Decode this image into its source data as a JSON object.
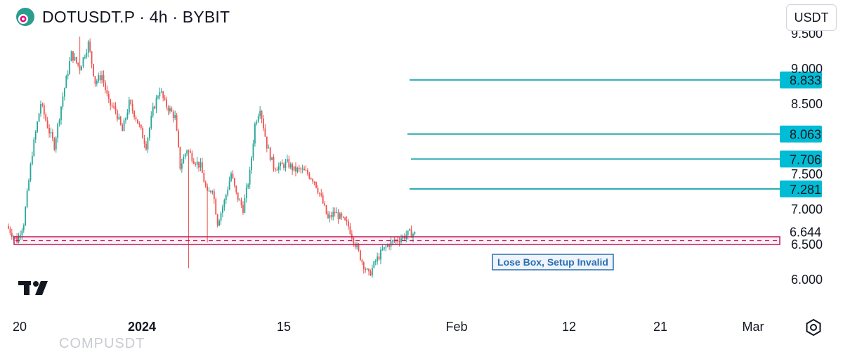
{
  "header": {
    "symbol_title": "DOTUSDT.P · 4h · BYBIT",
    "currency_button": "USDT"
  },
  "watermark_text": "COMPUSDT",
  "icons": {
    "symbol_logo": "polkadot-logo-icon",
    "tradingview_logo": "tradingview-logo-icon",
    "settings": "gear-icon"
  },
  "colors": {
    "up": "#26a69a",
    "down": "#ef5350",
    "level_line": "#22a7b2",
    "level_badge": "#00bcd4",
    "box": "#c2185b",
    "annotation": "#2a6fb6"
  },
  "chart_data": {
    "type": "candlestick",
    "price_axis_ticks": [
      "9.500",
      "9.000",
      "8.500",
      "7.500",
      "7.000",
      "6.500",
      "6.000"
    ],
    "time_axis_ticks": [
      "20",
      "2024",
      "15",
      "Feb",
      "12",
      "21",
      "Mar"
    ],
    "ylim": [
      5.6,
      9.6
    ],
    "levels": [
      {
        "price": 8.833,
        "label": "8.833"
      },
      {
        "price": 8.063,
        "label": "8.063"
      },
      {
        "price": 7.706,
        "label": "7.706"
      },
      {
        "price": 7.281,
        "label": "7.281"
      }
    ],
    "current_price": {
      "price": 6.644,
      "label": "6.644"
    },
    "box": {
      "top": 6.6,
      "bottom": 6.49,
      "mid": 6.545
    },
    "annotation": "Lose Box, Setup Invalid",
    "path_points": [
      [
        0,
        6.75
      ],
      [
        6,
        6.55
      ],
      [
        10,
        6.8
      ],
      [
        15,
        7.8
      ],
      [
        20,
        8.5
      ],
      [
        25,
        8.1
      ],
      [
        28,
        7.9
      ],
      [
        33,
        8.6
      ],
      [
        38,
        9.2
      ],
      [
        43,
        9.0
      ],
      [
        48,
        9.35
      ],
      [
        52,
        8.8
      ],
      [
        56,
        8.9
      ],
      [
        60,
        8.5
      ],
      [
        64,
        8.4
      ],
      [
        68,
        8.1
      ],
      [
        72,
        8.5
      ],
      [
        76,
        8.3
      ],
      [
        82,
        7.9
      ],
      [
        86,
        8.4
      ],
      [
        90,
        8.7
      ],
      [
        93,
        8.5
      ],
      [
        96,
        8.4
      ],
      [
        99,
        8.3
      ],
      [
        102,
        7.6
      ],
      [
        106,
        7.85
      ],
      [
        110,
        7.7
      ],
      [
        114,
        7.6
      ],
      [
        118,
        7.2
      ],
      [
        121,
        7.3
      ],
      [
        124,
        6.8
      ],
      [
        128,
        7.1
      ],
      [
        132,
        7.5
      ],
      [
        135,
        7.2
      ],
      [
        139,
        7.0
      ],
      [
        143,
        7.5
      ],
      [
        146,
        8.2
      ],
      [
        149,
        8.45
      ],
      [
        153,
        7.9
      ],
      [
        157,
        7.6
      ],
      [
        161,
        7.6
      ],
      [
        165,
        7.65
      ],
      [
        169,
        7.55
      ],
      [
        173,
        7.55
      ],
      [
        177,
        7.5
      ],
      [
        181,
        7.4
      ],
      [
        185,
        7.15
      ],
      [
        189,
        6.85
      ],
      [
        193,
        6.95
      ],
      [
        197,
        6.85
      ],
      [
        201,
        6.75
      ],
      [
        205,
        6.5
      ],
      [
        209,
        6.25
      ],
      [
        213,
        6.05
      ],
      [
        217,
        6.25
      ],
      [
        221,
        6.4
      ],
      [
        225,
        6.5
      ],
      [
        229,
        6.55
      ],
      [
        233,
        6.6
      ],
      [
        237,
        6.65
      ],
      [
        240,
        6.64
      ]
    ]
  }
}
